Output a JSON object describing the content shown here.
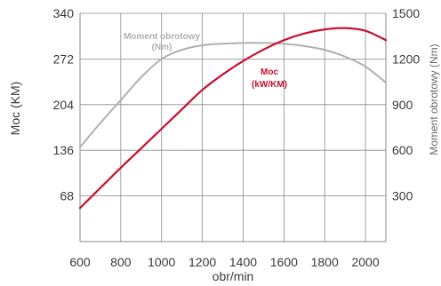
{
  "chart_data": {
    "type": "line",
    "xlabel": "obr/min",
    "ylabel_left": "Moc (KM)",
    "ylabel_right": "Moment obrotowy (Nm)",
    "x_ticks": [
      "600",
      "800",
      "1000",
      "1200",
      "1400",
      "1600",
      "1800",
      "2000"
    ],
    "y_left_ticks": [
      "68",
      "136",
      "204",
      "272",
      "340"
    ],
    "y_right_ticks": [
      "300",
      "600",
      "900",
      "1200",
      "1500"
    ],
    "xlim": [
      600,
      2100
    ],
    "ylim_left": [
      0,
      340
    ],
    "ylim_right": [
      0,
      1500
    ],
    "grid": true,
    "colors": {
      "power": "#c8102e",
      "torque": "#b0b0b0",
      "grid": "#8a8a8a"
    },
    "series": [
      {
        "key": "power",
        "axis": "left",
        "annotation": [
          "Moc",
          "(kW/KM)"
        ],
        "x": [
          600,
          700,
          800,
          900,
          1000,
          1100,
          1200,
          1300,
          1400,
          1500,
          1600,
          1700,
          1800,
          1900,
          2000,
          2100
        ],
        "y": [
          50,
          80,
          110,
          139,
          168,
          197,
          226,
          249,
          269,
          286,
          300,
          310,
          316,
          318,
          314,
          300
        ]
      },
      {
        "key": "torque",
        "axis": "right",
        "annotation": [
          "Moment obrotowy",
          "(Nm)"
        ],
        "x": [
          600,
          700,
          800,
          900,
          1000,
          1100,
          1200,
          1300,
          1400,
          1500,
          1600,
          1700,
          1800,
          1900,
          2000,
          2100
        ],
        "y": [
          620,
          780,
          930,
          1080,
          1200,
          1260,
          1290,
          1300,
          1305,
          1305,
          1300,
          1285,
          1260,
          1215,
          1150,
          1045
        ]
      }
    ]
  }
}
